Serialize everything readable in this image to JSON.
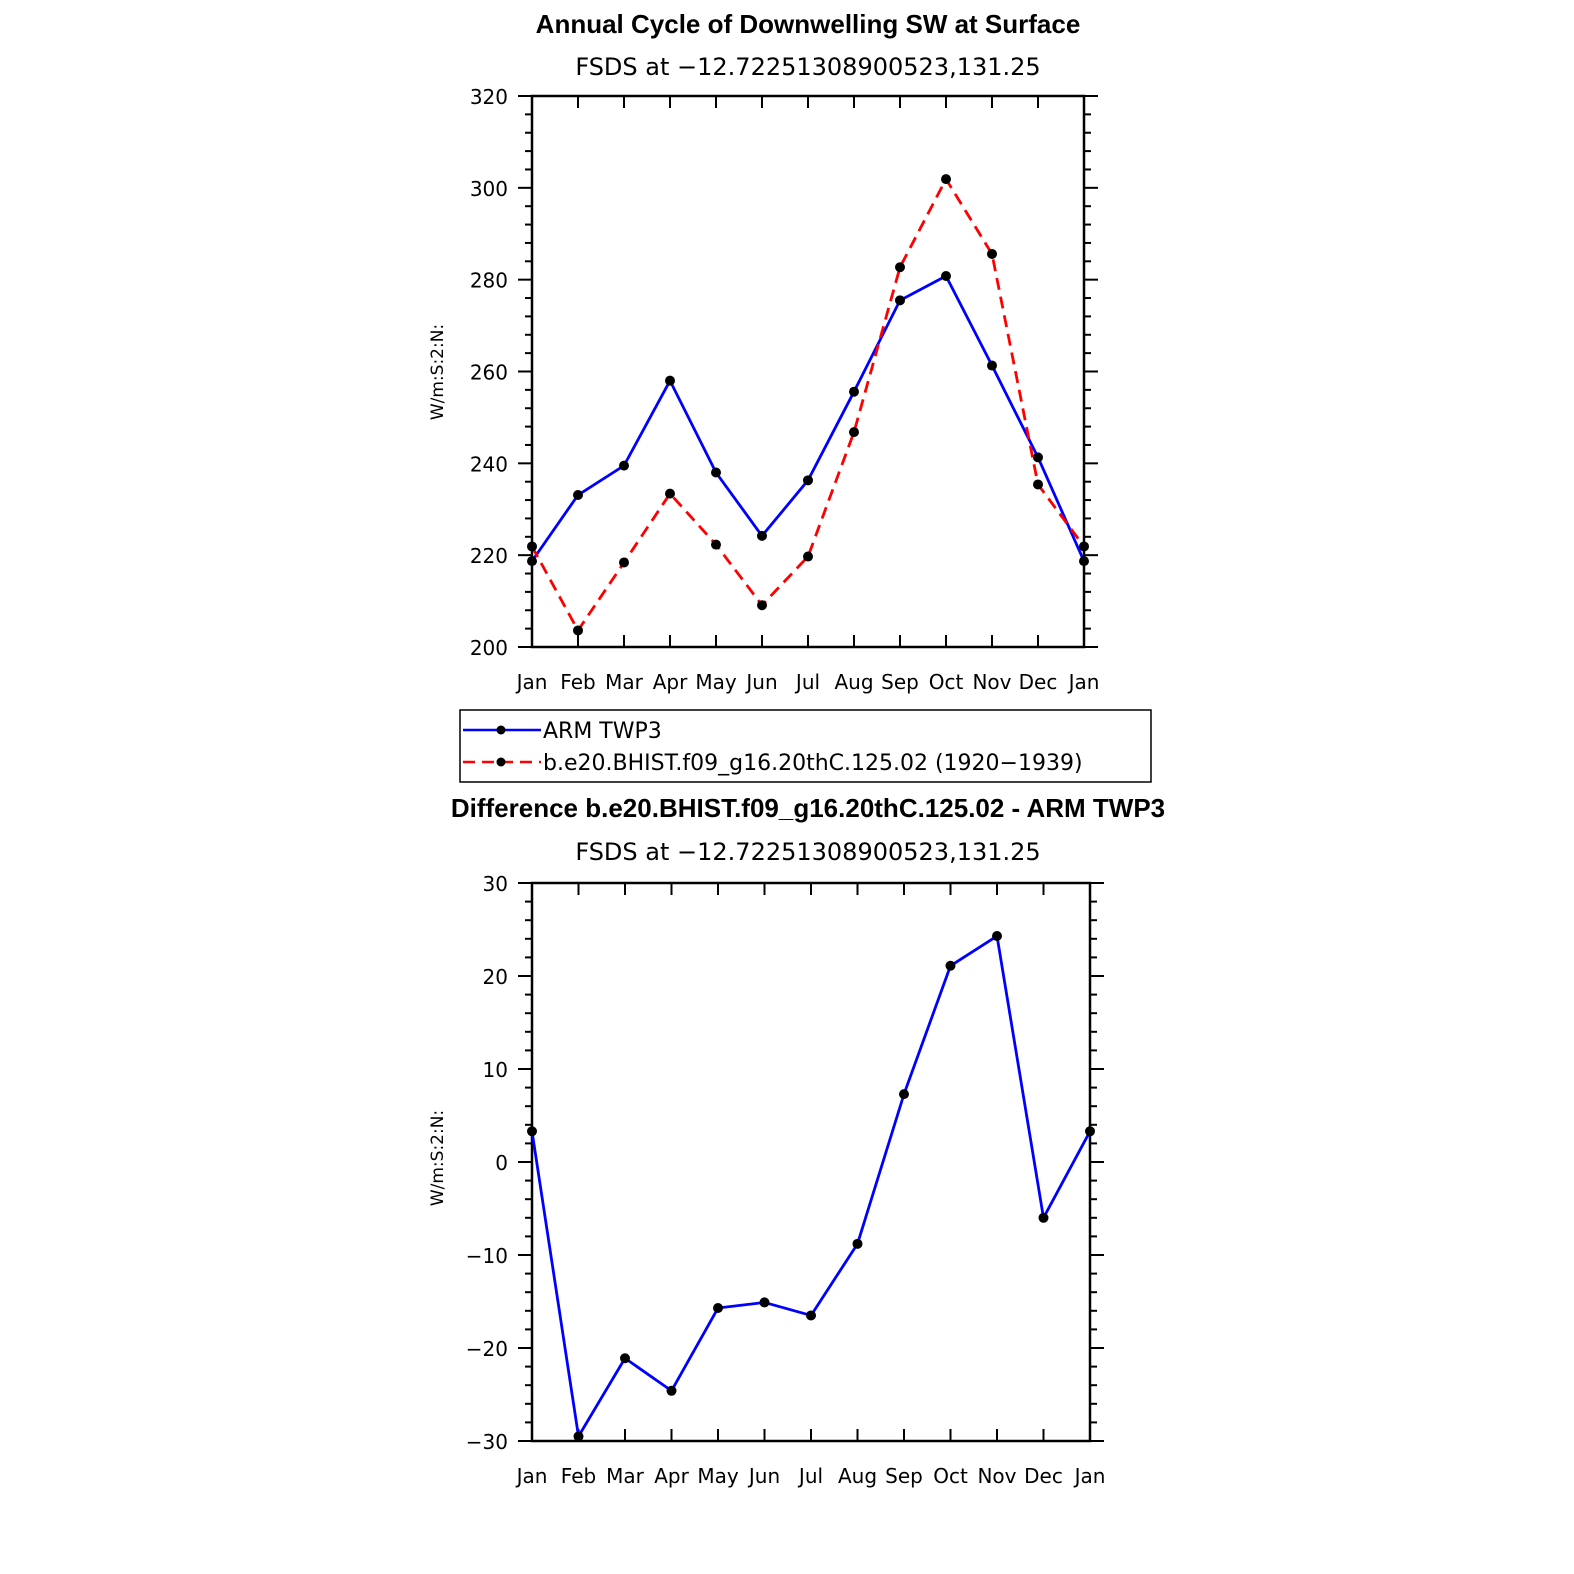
{
  "chart_data": [
    {
      "type": "line",
      "title": "Annual Cycle of Downwelling SW at Surface",
      "subtitle": "FSDS at −12.72251308900523,131.25",
      "ylabel": "W/m:S:2:N:",
      "categories": [
        "Jan",
        "Feb",
        "Mar",
        "Apr",
        "May",
        "Jun",
        "Jul",
        "Aug",
        "Sep",
        "Oct",
        "Nov",
        "Dec",
        "Jan"
      ],
      "ylim": [
        200,
        320
      ],
      "yticks": [
        200,
        220,
        240,
        260,
        280,
        300,
        320
      ],
      "ytick_labels": [
        "200",
        "220",
        "240",
        "260",
        "280",
        "300",
        "320"
      ],
      "series": [
        {
          "name": "ARM TWP3",
          "color": "#0000ff",
          "dash": "solid",
          "values": [
            218.7,
            233.1,
            239.5,
            258.0,
            238.0,
            224.2,
            236.3,
            255.6,
            275.5,
            280.8,
            261.3,
            241.3,
            218.7
          ]
        },
        {
          "name": "b.e20.BHIST.f09_g16.20thC.125.02 (1920−1939)",
          "color": "#ff0000",
          "dash": "dashed",
          "values": [
            221.9,
            203.6,
            218.4,
            233.4,
            222.3,
            209.1,
            219.7,
            246.8,
            282.7,
            301.9,
            285.6,
            235.4,
            221.9
          ]
        }
      ],
      "legend": "below"
    },
    {
      "type": "line",
      "title": "Difference b.e20.BHIST.f09_g16.20thC.125.02 - ARM TWP3",
      "subtitle": "FSDS at −12.72251308900523,131.25",
      "ylabel": "W/m:S:2:N:",
      "categories": [
        "Jan",
        "Feb",
        "Mar",
        "Apr",
        "May",
        "Jun",
        "Jul",
        "Aug",
        "Sep",
        "Oct",
        "Nov",
        "Dec",
        "Jan"
      ],
      "ylim": [
        -30,
        30
      ],
      "yticks": [
        -30,
        -20,
        -10,
        0,
        10,
        20,
        30
      ],
      "ytick_labels": [
        "−30",
        "−20",
        "−10",
        "0",
        "10",
        "20",
        "30"
      ],
      "series": [
        {
          "color": "#0000ff",
          "dash": "solid",
          "values": [
            3.3,
            -29.5,
            -21.1,
            -24.6,
            -15.7,
            -15.1,
            -16.5,
            -8.8,
            7.3,
            21.1,
            24.3,
            -6.0,
            3.3
          ]
        }
      ]
    }
  ]
}
